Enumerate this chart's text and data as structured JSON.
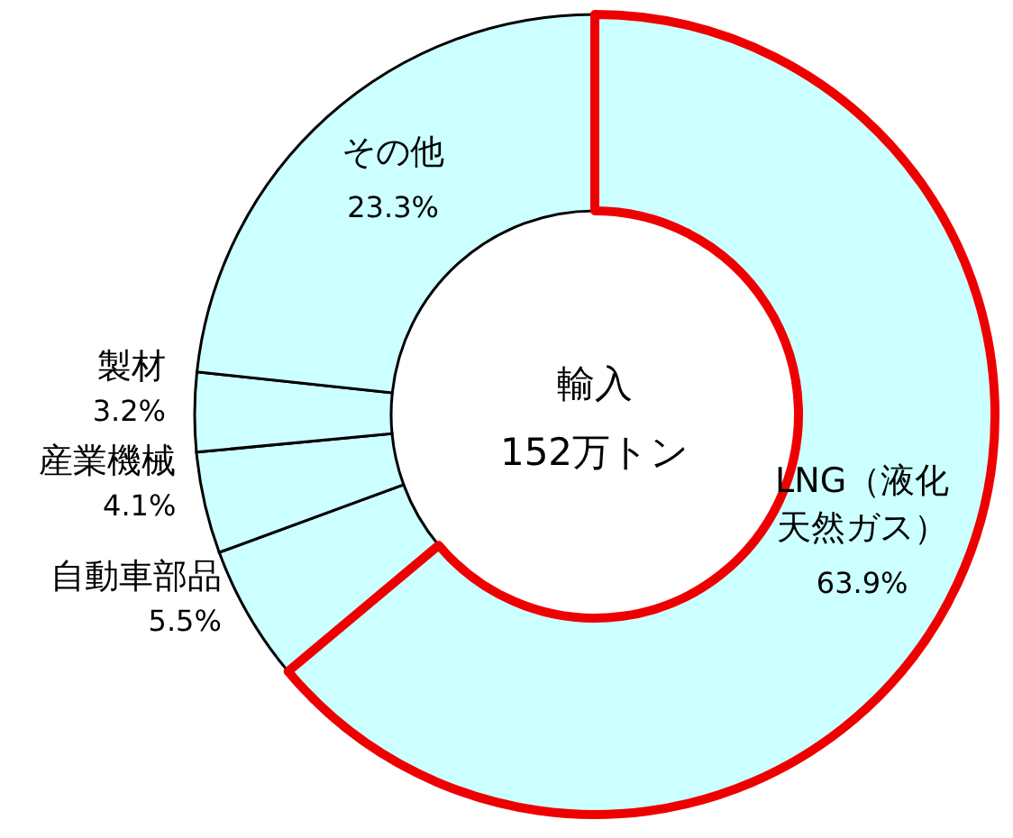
{
  "chart_data": {
    "type": "donut",
    "categories": [
      "LNG（液化天然ガス）",
      "自動車部品",
      "産業機械",
      "製材",
      "その他"
    ],
    "values": [
      63.9,
      5.5,
      4.1,
      3.2,
      23.3
    ],
    "colors": [
      "#ccffff",
      "#ccffff",
      "#ccffff",
      "#ccffff",
      "#ccffff"
    ],
    "value_labels": [
      "63.9%",
      "5.5%",
      "4.1%",
      "3.2%",
      "23.3%"
    ],
    "annotations": [
      "輸入",
      "152万トン"
    ]
  }
}
